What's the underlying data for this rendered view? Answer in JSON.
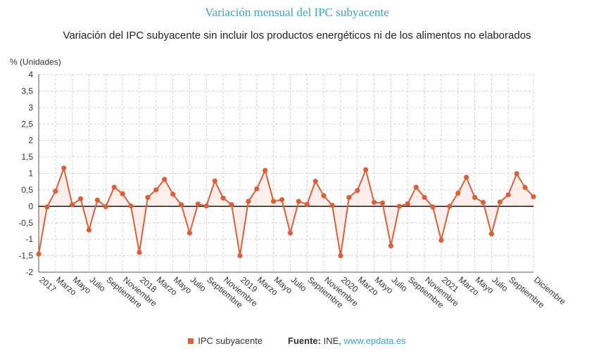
{
  "title": "Variación mensual del IPC subyacente",
  "subtitle": "Variación del IPC subyacente sin incluir los productos energéticos ni de los alimentos no elaborados",
  "legend": {
    "series_label": "IPC subyacente",
    "source_label": "Fuente:",
    "source_org": "INE,",
    "source_link": "www.epdata.es"
  },
  "colors": {
    "series": "#d9603b",
    "grid": "#cccccc",
    "title": "#3aa6c2"
  },
  "chart_data": {
    "type": "line",
    "title": "Variación mensual del IPC subyacente",
    "subtitle": "Variación del IPC subyacente sin incluir los productos energéticos ni de los alimentos no elaborados",
    "ylabel": "% (Unidades)",
    "ylim": [
      -2,
      4
    ],
    "yticks": [
      4,
      3.5,
      3,
      2.5,
      2,
      1.5,
      1,
      0.5,
      0,
      -0.5,
      -1,
      -1.5,
      -2
    ],
    "ytick_labels": [
      "4",
      "3,5",
      "3",
      "2,5",
      "2",
      "1,5",
      "1",
      "0,5",
      "0",
      "-0,5",
      "-1",
      "-1,5",
      "-2"
    ],
    "grid": true,
    "legend_position": "bottom",
    "x_tick_labels": [
      {
        "i": 0,
        "label": "2017"
      },
      {
        "i": 2,
        "label": "Marzo"
      },
      {
        "i": 4,
        "label": "Mayo"
      },
      {
        "i": 6,
        "label": "Julio"
      },
      {
        "i": 8,
        "label": "Septiembre"
      },
      {
        "i": 10,
        "label": "Noviembre"
      },
      {
        "i": 12,
        "label": "2018"
      },
      {
        "i": 14,
        "label": "Marzo"
      },
      {
        "i": 16,
        "label": "Mayo"
      },
      {
        "i": 18,
        "label": "Julio"
      },
      {
        "i": 20,
        "label": "Septiembre"
      },
      {
        "i": 22,
        "label": "Noviembre"
      },
      {
        "i": 24,
        "label": "2019"
      },
      {
        "i": 26,
        "label": "Marzo"
      },
      {
        "i": 28,
        "label": "Mayo"
      },
      {
        "i": 30,
        "label": "Julio"
      },
      {
        "i": 32,
        "label": "Septiembre"
      },
      {
        "i": 34,
        "label": "Noviembre"
      },
      {
        "i": 36,
        "label": "2020"
      },
      {
        "i": 38,
        "label": "Marzo"
      },
      {
        "i": 40,
        "label": "Mayo"
      },
      {
        "i": 42,
        "label": "Julio"
      },
      {
        "i": 44,
        "label": "Septiembre"
      },
      {
        "i": 46,
        "label": "Noviembre"
      },
      {
        "i": 48,
        "label": "2021"
      },
      {
        "i": 50,
        "label": "Marzo"
      },
      {
        "i": 52,
        "label": "Mayo"
      },
      {
        "i": 54,
        "label": "Julio"
      },
      {
        "i": 56,
        "label": "Septiembre"
      },
      {
        "i": 59,
        "label": "Diciembre"
      }
    ],
    "series": [
      {
        "name": "IPC subyacente",
        "values": [
          -1.45,
          -0.02,
          0.46,
          1.16,
          0.05,
          0.23,
          -0.72,
          0.19,
          -0.01,
          0.58,
          0.38,
          0.01,
          -1.4,
          0.27,
          0.5,
          0.82,
          0.37,
          0.05,
          -0.81,
          0.07,
          0.01,
          0.77,
          0.25,
          0.05,
          -1.5,
          0.15,
          0.53,
          1.09,
          0.15,
          0.2,
          -0.81,
          0.15,
          0.06,
          0.76,
          0.32,
          0.03,
          -1.5,
          0.27,
          0.48,
          1.11,
          0.12,
          0.1,
          -1.2,
          0.0,
          0.08,
          0.58,
          0.27,
          -0.02,
          -1.03,
          0.0,
          0.4,
          0.88,
          0.27,
          0.12,
          -0.84,
          0.13,
          0.35,
          0.99,
          0.57,
          0.29
        ]
      }
    ]
  }
}
